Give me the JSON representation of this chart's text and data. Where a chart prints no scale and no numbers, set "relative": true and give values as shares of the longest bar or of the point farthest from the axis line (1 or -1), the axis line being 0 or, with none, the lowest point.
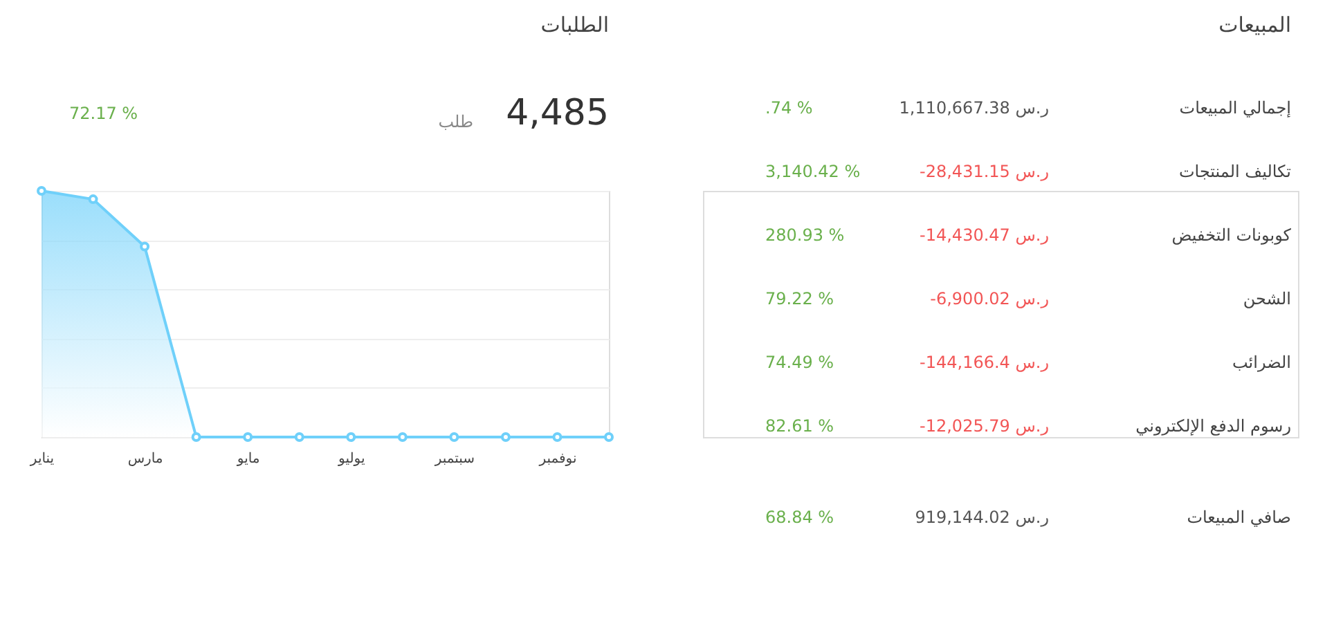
{
  "chart_data": [
    {
      "type": "other",
      "title": "المبيعات",
      "annotations": [
        "إجمالي المبيعات",
        "1,110,667.38 ر.س",
        ".74 %",
        "تكاليف المنتجات",
        "-28,431.15 ر.س",
        "3,140.42 %",
        "كوبونات التخفيض",
        "-14,430.47 ر.س",
        "280.93 %",
        "الشحن",
        "-6,900.02 ر.س",
        "79.22 %",
        "الضرائب",
        "-144,166.4 ر.س",
        "74.49 %",
        "رسوم الدفع الإلكتروني",
        "-12,025.79 ر.س",
        "82.61 %",
        "صافي المبيعات",
        "919,144.02 ر.س",
        "68.84 %"
      ],
      "colors": [
        "#444444",
        "#555555",
        "#6ab04c",
        "#444444",
        "#f25555",
        "#6ab04c",
        "#444444",
        "#f25555",
        "#6ab04c",
        "#444444",
        "#f25555",
        "#6ab04c",
        "#444444",
        "#f25555",
        "#6ab04c",
        "#444444",
        "#f25555",
        "#6ab04c",
        "#444444",
        "#555555",
        "#6ab04c"
      ]
    },
    {
      "type": "area",
      "title": "الطلبات",
      "relative": true,
      "annotations": [
        "4,485",
        "طلب",
        "72.17 %"
      ],
      "categories": [
        "يناير",
        null,
        "مارس",
        null,
        "مايو",
        null,
        "يوليو",
        null,
        "سبتمبر",
        null,
        "نوفمبر",
        null
      ],
      "series": [
        {
          "color": "#6fd0fa",
          "values": [
            1,
            0.966,
            0.774,
            0,
            0,
            0,
            0,
            0,
            0,
            0,
            0,
            0
          ]
        }
      ],
      "marker": "circle",
      "grid": "y"
    }
  ]
}
